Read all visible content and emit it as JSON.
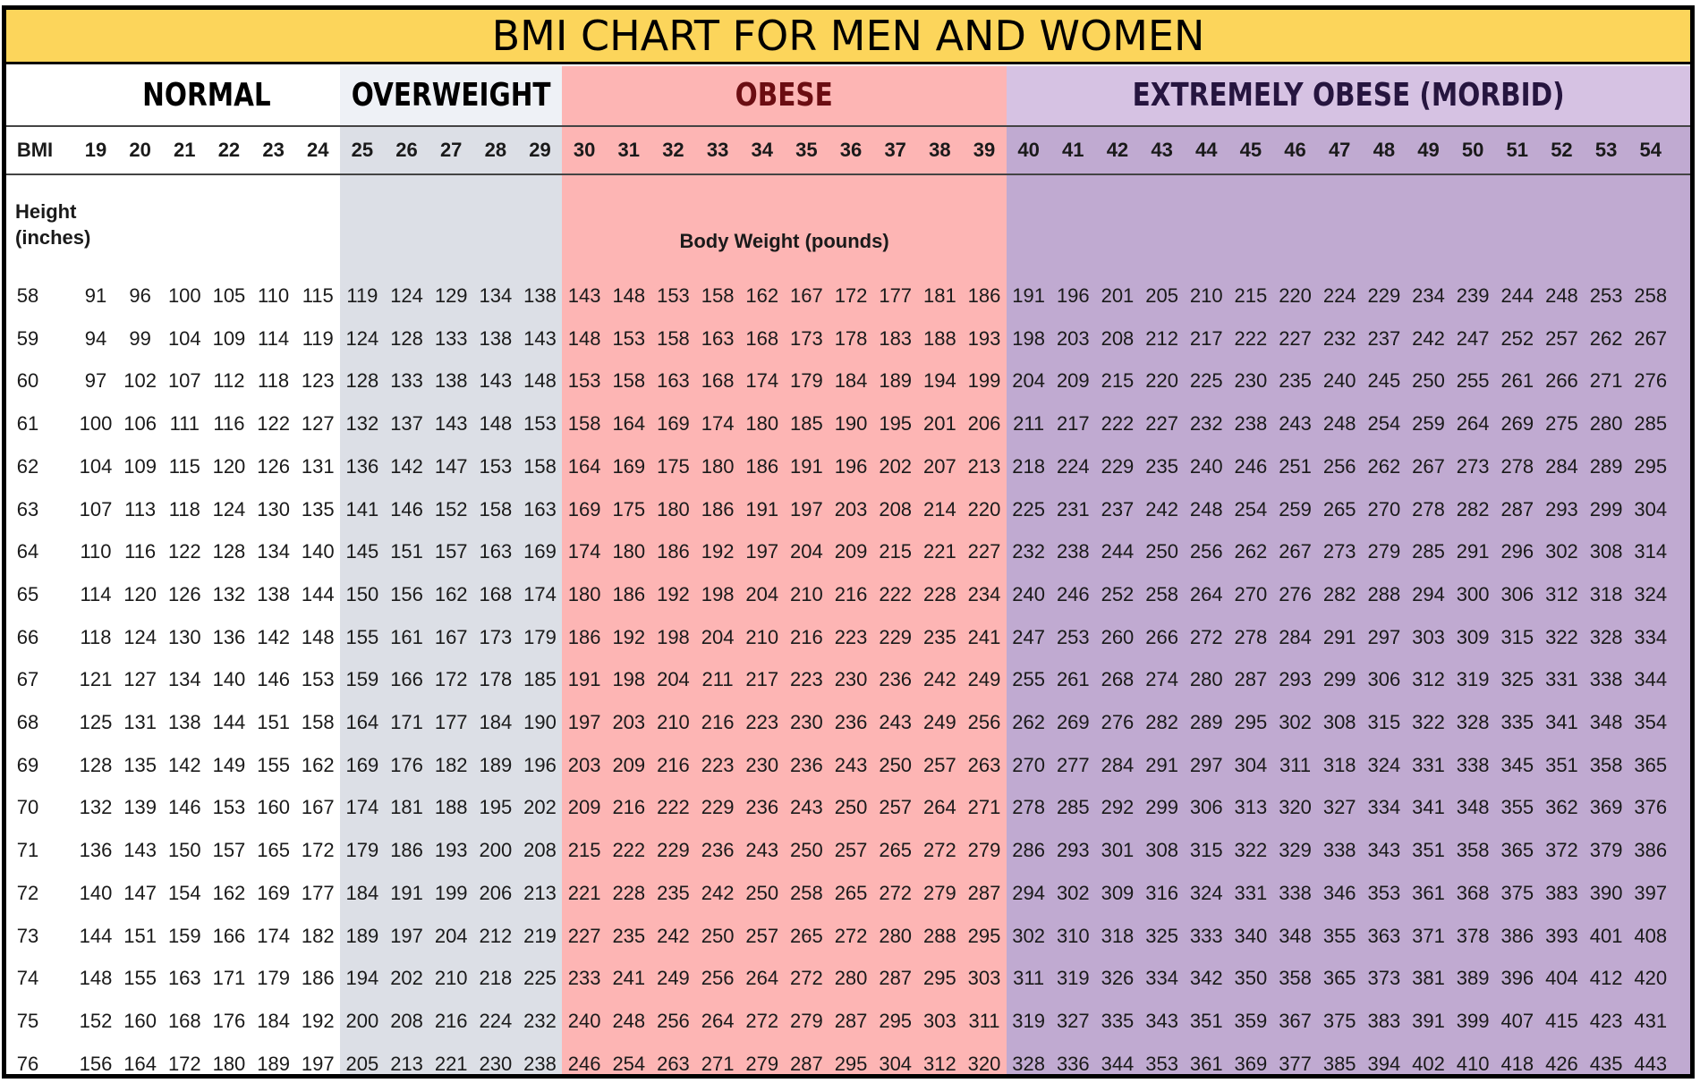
{
  "chart_data": {
    "type": "table",
    "title": "BMI CHART FOR MEN AND WOMEN",
    "categories": [
      {
        "name": "NORMAL",
        "bmi_from": 19,
        "bmi_to": 24,
        "fill": "#ffffff",
        "text_color": "#000000"
      },
      {
        "name": "OVERWEIGHT",
        "bmi_from": 25,
        "bmi_to": 29,
        "fill": "#dcdfe6",
        "text_color": "#000000"
      },
      {
        "name": "OBESE",
        "bmi_from": 30,
        "bmi_to": 39,
        "fill": "#fdb5b4",
        "text_color": "#6b0d12"
      },
      {
        "name": "EXTREMELY OBESE (MORBID)",
        "bmi_from": 40,
        "bmi_to": 54,
        "fill": "#c0aad1",
        "text_color": "#26153f"
      }
    ],
    "header_fill_colors": {
      "OVERWEIGHT": "#eef1f6",
      "EXTREMELY OBESE (MORBID)": "#d6c2e3"
    },
    "row_header_label": "BMI",
    "height_label": "Height\n(inches)",
    "weight_label": "Body Weight (pounds)",
    "bmi": [
      19,
      20,
      21,
      22,
      23,
      24,
      25,
      26,
      27,
      28,
      29,
      30,
      31,
      32,
      33,
      34,
      35,
      36,
      37,
      38,
      39,
      40,
      41,
      42,
      43,
      44,
      45,
      46,
      47,
      48,
      49,
      50,
      51,
      52,
      53,
      54
    ],
    "rows": [
      {
        "height": "58",
        "weights": [
          91,
          96,
          100,
          105,
          110,
          115,
          119,
          124,
          129,
          134,
          138,
          143,
          148,
          153,
          158,
          162,
          167,
          172,
          177,
          181,
          186,
          191,
          196,
          201,
          205,
          210,
          215,
          220,
          224,
          229,
          234,
          239,
          244,
          248,
          253,
          258
        ]
      },
      {
        "height": "59",
        "weights": [
          94,
          99,
          104,
          109,
          114,
          119,
          124,
          128,
          133,
          138,
          143,
          148,
          153,
          158,
          163,
          168,
          173,
          178,
          183,
          188,
          193,
          198,
          203,
          208,
          212,
          217,
          222,
          227,
          232,
          237,
          242,
          247,
          252,
          257,
          262,
          267
        ]
      },
      {
        "height": "60",
        "weights": [
          97,
          102,
          107,
          112,
          118,
          123,
          128,
          133,
          138,
          143,
          148,
          153,
          158,
          163,
          168,
          174,
          179,
          184,
          189,
          194,
          199,
          204,
          209,
          215,
          220,
          225,
          230,
          235,
          240,
          245,
          250,
          255,
          261,
          266,
          271,
          276
        ]
      },
      {
        "height": "61",
        "weights": [
          100,
          106,
          111,
          116,
          122,
          127,
          132,
          137,
          143,
          148,
          153,
          158,
          164,
          169,
          174,
          180,
          185,
          190,
          195,
          201,
          206,
          211,
          217,
          222,
          227,
          232,
          238,
          243,
          248,
          254,
          259,
          264,
          269,
          275,
          280,
          285
        ]
      },
      {
        "height": "62",
        "weights": [
          104,
          109,
          115,
          120,
          126,
          131,
          136,
          142,
          147,
          153,
          158,
          164,
          169,
          175,
          180,
          186,
          191,
          196,
          202,
          207,
          213,
          218,
          224,
          229,
          235,
          240,
          246,
          251,
          256,
          262,
          267,
          273,
          278,
          284,
          289,
          295
        ]
      },
      {
        "height": "63",
        "weights": [
          107,
          113,
          118,
          124,
          130,
          135,
          141,
          146,
          152,
          158,
          163,
          169,
          175,
          180,
          186,
          191,
          197,
          203,
          208,
          214,
          220,
          225,
          231,
          237,
          242,
          248,
          254,
          259,
          265,
          270,
          278,
          282,
          287,
          293,
          299,
          304
        ]
      },
      {
        "height": "64",
        "weights": [
          110,
          116,
          122,
          128,
          134,
          140,
          145,
          151,
          157,
          163,
          169,
          174,
          180,
          186,
          192,
          197,
          204,
          209,
          215,
          221,
          227,
          232,
          238,
          244,
          250,
          256,
          262,
          267,
          273,
          279,
          285,
          291,
          296,
          302,
          308,
          314
        ]
      },
      {
        "height": "65",
        "weights": [
          114,
          120,
          126,
          132,
          138,
          144,
          150,
          156,
          162,
          168,
          174,
          180,
          186,
          192,
          198,
          204,
          210,
          216,
          222,
          228,
          234,
          240,
          246,
          252,
          258,
          264,
          270,
          276,
          282,
          288,
          294,
          300,
          306,
          312,
          318,
          324
        ]
      },
      {
        "height": "66",
        "weights": [
          118,
          124,
          130,
          136,
          142,
          148,
          155,
          161,
          167,
          173,
          179,
          186,
          192,
          198,
          204,
          210,
          216,
          223,
          229,
          235,
          241,
          247,
          253,
          260,
          266,
          272,
          278,
          284,
          291,
          297,
          303,
          309,
          315,
          322,
          328,
          334
        ]
      },
      {
        "height": "67",
        "weights": [
          121,
          127,
          134,
          140,
          146,
          153,
          159,
          166,
          172,
          178,
          185,
          191,
          198,
          204,
          211,
          217,
          223,
          230,
          236,
          242,
          249,
          255,
          261,
          268,
          274,
          280,
          287,
          293,
          299,
          306,
          312,
          319,
          325,
          331,
          338,
          344
        ]
      },
      {
        "height": "68",
        "weights": [
          125,
          131,
          138,
          144,
          151,
          158,
          164,
          171,
          177,
          184,
          190,
          197,
          203,
          210,
          216,
          223,
          230,
          236,
          243,
          249,
          256,
          262,
          269,
          276,
          282,
          289,
          295,
          302,
          308,
          315,
          322,
          328,
          335,
          341,
          348,
          354
        ]
      },
      {
        "height": "69",
        "weights": [
          128,
          135,
          142,
          149,
          155,
          162,
          169,
          176,
          182,
          189,
          196,
          203,
          209,
          216,
          223,
          230,
          236,
          243,
          250,
          257,
          263,
          270,
          277,
          284,
          291,
          297,
          304,
          311,
          318,
          324,
          331,
          338,
          345,
          351,
          358,
          365
        ]
      },
      {
        "height": "70",
        "weights": [
          132,
          139,
          146,
          153,
          160,
          167,
          174,
          181,
          188,
          195,
          202,
          209,
          216,
          222,
          229,
          236,
          243,
          250,
          257,
          264,
          271,
          278,
          285,
          292,
          299,
          306,
          313,
          320,
          327,
          334,
          341,
          348,
          355,
          362,
          369,
          376
        ]
      },
      {
        "height": "71",
        "weights": [
          136,
          143,
          150,
          157,
          165,
          172,
          179,
          186,
          193,
          200,
          208,
          215,
          222,
          229,
          236,
          243,
          250,
          257,
          265,
          272,
          279,
          286,
          293,
          301,
          308,
          315,
          322,
          329,
          338,
          343,
          351,
          358,
          365,
          372,
          379,
          386
        ]
      },
      {
        "height": "72",
        "weights": [
          140,
          147,
          154,
          162,
          169,
          177,
          184,
          191,
          199,
          206,
          213,
          221,
          228,
          235,
          242,
          250,
          258,
          265,
          272,
          279,
          287,
          294,
          302,
          309,
          316,
          324,
          331,
          338,
          346,
          353,
          361,
          368,
          375,
          383,
          390,
          397
        ]
      },
      {
        "height": "73",
        "weights": [
          144,
          151,
          159,
          166,
          174,
          182,
          189,
          197,
          204,
          212,
          219,
          227,
          235,
          242,
          250,
          257,
          265,
          272,
          280,
          288,
          295,
          302,
          310,
          318,
          325,
          333,
          340,
          348,
          355,
          363,
          371,
          378,
          386,
          393,
          401,
          408
        ]
      },
      {
        "height": "74",
        "weights": [
          148,
          155,
          163,
          171,
          179,
          186,
          194,
          202,
          210,
          218,
          225,
          233,
          241,
          249,
          256,
          264,
          272,
          280,
          287,
          295,
          303,
          311,
          319,
          326,
          334,
          342,
          350,
          358,
          365,
          373,
          381,
          389,
          396,
          404,
          412,
          420
        ]
      },
      {
        "height": "75",
        "weights": [
          152,
          160,
          168,
          176,
          184,
          192,
          200,
          208,
          216,
          224,
          232,
          240,
          248,
          256,
          264,
          272,
          279,
          287,
          295,
          303,
          311,
          319,
          327,
          335,
          343,
          351,
          359,
          367,
          375,
          383,
          391,
          399,
          407,
          415,
          423,
          431
        ]
      },
      {
        "height": "76",
        "weights": [
          156,
          164,
          172,
          180,
          189,
          197,
          205,
          213,
          221,
          230,
          238,
          246,
          254,
          263,
          271,
          279,
          287,
          295,
          304,
          312,
          320,
          328,
          336,
          344,
          353,
          361,
          369,
          377,
          385,
          394,
          402,
          410,
          418,
          426,
          435,
          443
        ]
      }
    ]
  }
}
